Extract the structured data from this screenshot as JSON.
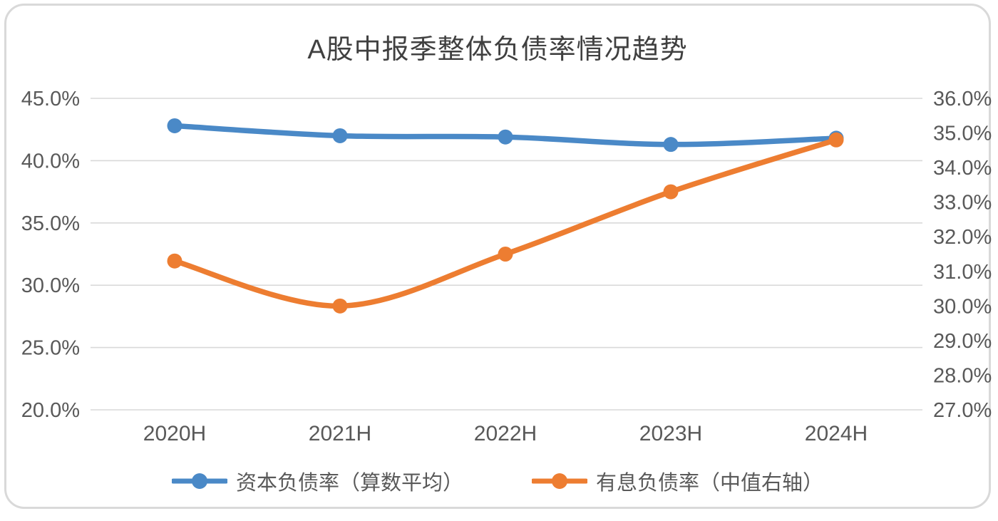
{
  "chart_data": {
    "type": "line",
    "title": "A股中报季整体负债率情况趋势",
    "categories": [
      "2020H",
      "2021H",
      "2022H",
      "2023H",
      "2024H"
    ],
    "series": [
      {
        "name": "资本负债率（算数平均）",
        "axis": "left",
        "color": "#4a89c7",
        "marker": "circle",
        "values": [
          42.8,
          42.0,
          41.9,
          41.3,
          41.8
        ]
      },
      {
        "name": "有息负债率（中值右轴）",
        "axis": "right",
        "color": "#ed7d31",
        "marker": "circle",
        "values": [
          31.3,
          30.0,
          31.5,
          33.3,
          34.8
        ]
      }
    ],
    "left_axis": {
      "min": 20.0,
      "max": 45.0,
      "step": 5.0,
      "tick_labels": [
        "45.0%",
        "40.0%",
        "35.0%",
        "30.0%",
        "25.0%",
        "20.0%"
      ]
    },
    "right_axis": {
      "min": 27.0,
      "max": 36.0,
      "step": 1.0,
      "tick_labels": [
        "36.0%",
        "35.0%",
        "34.0%",
        "33.0%",
        "32.0%",
        "31.0%",
        "30.0%",
        "29.0%",
        "28.0%",
        "27.0%"
      ]
    },
    "grid": true,
    "gridline_color": "#d9d9d9",
    "axis_label_color": "#595959",
    "title_color": "#404040",
    "legend_position": "bottom",
    "line_smooth": true
  }
}
